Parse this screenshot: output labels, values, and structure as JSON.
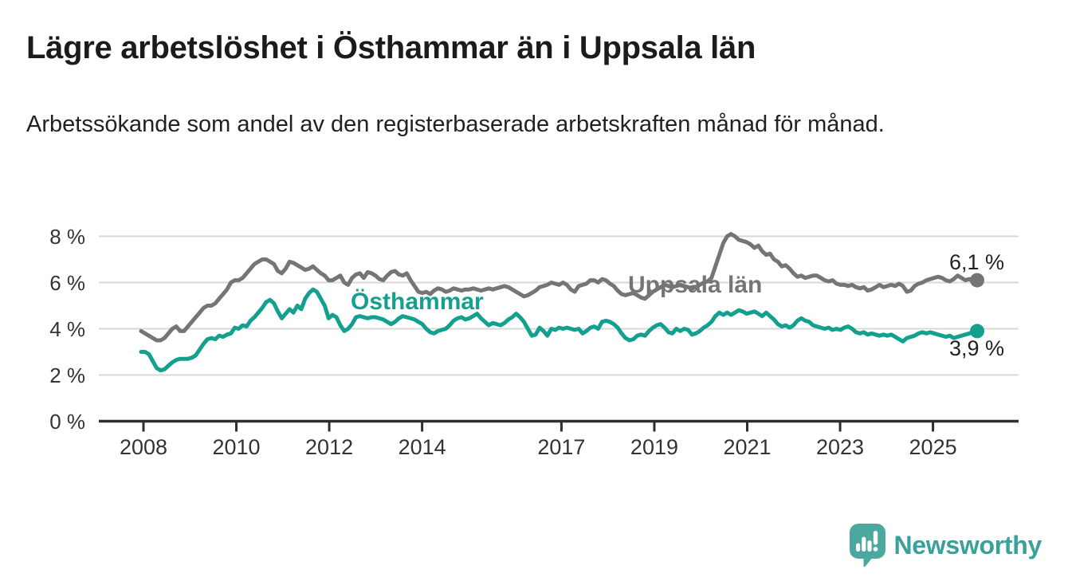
{
  "header": {
    "title": "Lägre arbetslöshet i Östhammar än i Uppsala län",
    "subtitle": "Arbetssökande som andel av den registerbaserade arbetskraften månad för månad."
  },
  "chart_data": {
    "type": "line",
    "title": "Lägre arbetslöshet i Östhammar än i Uppsala län",
    "subtitle": "Arbetssökande som andel av den registerbaserade arbetskraften månad för månad.",
    "unit": "%",
    "x_frequency": "monthly",
    "x_start": "2008-01",
    "x_end": "2025-11",
    "xlabel": "",
    "ylabel": "",
    "ylim": [
      0,
      8.6
    ],
    "grid": true,
    "legend_position": "inline-labels-on-chart",
    "yticks": [
      {
        "label": "8 %",
        "value": 8
      },
      {
        "label": "6 %",
        "value": 6
      },
      {
        "label": "4 %",
        "value": 4
      },
      {
        "label": "2 %",
        "value": 2
      },
      {
        "label": "0 %",
        "value": 0
      }
    ],
    "xticks": [
      {
        "label": "2008",
        "value": 2008
      },
      {
        "label": "2010",
        "value": 2010
      },
      {
        "label": "2012",
        "value": 2012
      },
      {
        "label": "2014",
        "value": 2014
      },
      {
        "label": "2017",
        "value": 2017
      },
      {
        "label": "2019",
        "value": 2019
      },
      {
        "label": "2021",
        "value": 2021
      },
      {
        "label": "2023",
        "value": 2023
      },
      {
        "label": "2025",
        "value": 2025
      }
    ],
    "series": [
      {
        "id": "uppsala-lan",
        "name": "Uppsala län",
        "color": "#757575",
        "end_label": "6,1 %",
        "end_value": 6.1,
        "values": [
          3.9,
          3.8,
          3.7,
          3.6,
          3.5,
          3.5,
          3.6,
          3.8,
          4.0,
          4.1,
          3.9,
          3.9,
          4.1,
          4.3,
          4.5,
          4.7,
          4.9,
          5.0,
          5.0,
          5.1,
          5.3,
          5.5,
          5.7,
          6.0,
          6.1,
          6.1,
          6.2,
          6.4,
          6.6,
          6.8,
          6.9,
          7.0,
          7.0,
          6.9,
          6.8,
          6.5,
          6.4,
          6.6,
          6.9,
          6.85,
          6.75,
          6.65,
          6.55,
          6.6,
          6.7,
          6.55,
          6.4,
          6.3,
          6.1,
          6.1,
          6.2,
          6.3,
          6.0,
          5.9,
          6.2,
          6.35,
          6.4,
          6.2,
          6.45,
          6.4,
          6.3,
          6.15,
          6.1,
          6.3,
          6.45,
          6.5,
          6.35,
          6.3,
          6.4,
          6.1,
          5.85,
          5.6,
          5.55,
          5.6,
          5.5,
          5.65,
          5.75,
          5.7,
          5.6,
          5.65,
          5.75,
          5.7,
          5.65,
          5.7,
          5.7,
          5.75,
          5.7,
          5.65,
          5.7,
          5.75,
          5.7,
          5.75,
          5.8,
          5.85,
          5.8,
          5.7,
          5.6,
          5.5,
          5.4,
          5.45,
          5.55,
          5.65,
          5.8,
          5.85,
          5.9,
          6.0,
          5.95,
          5.9,
          6.0,
          5.9,
          5.7,
          5.6,
          5.85,
          5.9,
          5.95,
          6.1,
          6.1,
          6.0,
          6.15,
          6.1,
          5.95,
          5.85,
          5.65,
          5.5,
          5.45,
          5.5,
          5.55,
          5.45,
          5.35,
          5.3,
          5.45,
          5.6,
          5.7,
          5.8,
          5.9,
          5.85,
          5.8,
          5.85,
          5.9,
          5.85,
          5.8,
          5.75,
          5.8,
          5.9,
          6.0,
          6.05,
          6.2,
          6.7,
          7.2,
          7.7,
          8.0,
          8.1,
          8.0,
          7.85,
          7.8,
          7.75,
          7.65,
          7.5,
          7.6,
          7.35,
          7.2,
          7.25,
          7.0,
          6.9,
          6.7,
          6.75,
          6.6,
          6.4,
          6.25,
          6.3,
          6.2,
          6.25,
          6.3,
          6.3,
          6.2,
          6.1,
          6.05,
          6.1,
          5.95,
          5.9,
          5.9,
          5.85,
          5.9,
          5.8,
          5.75,
          5.8,
          5.65,
          5.7,
          5.8,
          5.9,
          5.8,
          5.85,
          5.9,
          5.85,
          5.95,
          5.85,
          5.6,
          5.65,
          5.85,
          5.95,
          6.0,
          6.1,
          6.15,
          6.2,
          6.25,
          6.2,
          6.1,
          6.05,
          6.15,
          6.3,
          6.2,
          6.1,
          6.15,
          6.05,
          6.1
        ]
      },
      {
        "id": "osthammar",
        "name": "Östhammar",
        "color": "#13a08f",
        "end_label": "3,9 %",
        "end_value": 3.9,
        "values": [
          3.0,
          3.0,
          2.9,
          2.6,
          2.3,
          2.2,
          2.25,
          2.4,
          2.55,
          2.65,
          2.7,
          2.7,
          2.7,
          2.75,
          2.85,
          3.1,
          3.35,
          3.55,
          3.6,
          3.55,
          3.7,
          3.65,
          3.75,
          3.8,
          4.05,
          4.0,
          4.15,
          4.1,
          4.35,
          4.5,
          4.7,
          4.9,
          5.15,
          5.25,
          5.1,
          4.75,
          4.45,
          4.65,
          4.85,
          4.7,
          5.0,
          4.85,
          5.3,
          5.55,
          5.7,
          5.6,
          5.3,
          5.0,
          4.45,
          4.6,
          4.5,
          4.15,
          3.9,
          4.0,
          4.2,
          4.5,
          4.55,
          4.5,
          4.45,
          4.5,
          4.5,
          4.45,
          4.4,
          4.3,
          4.2,
          4.3,
          4.45,
          4.55,
          4.5,
          4.45,
          4.4,
          4.3,
          4.2,
          4.0,
          3.85,
          3.8,
          3.9,
          3.95,
          4.0,
          4.15,
          4.35,
          4.45,
          4.5,
          4.4,
          4.45,
          4.55,
          4.65,
          4.45,
          4.3,
          4.15,
          4.25,
          4.2,
          4.15,
          4.25,
          4.4,
          4.5,
          4.65,
          4.5,
          4.3,
          4.0,
          3.7,
          3.75,
          4.05,
          3.9,
          3.7,
          4.0,
          3.95,
          4.05,
          4.0,
          4.05,
          4.0,
          3.95,
          4.0,
          3.8,
          3.9,
          4.05,
          4.1,
          4.0,
          4.3,
          4.35,
          4.3,
          4.2,
          4.05,
          3.8,
          3.6,
          3.5,
          3.55,
          3.7,
          3.75,
          3.7,
          3.9,
          4.05,
          4.15,
          4.2,
          4.05,
          3.85,
          3.8,
          4.0,
          3.9,
          4.0,
          3.95,
          3.75,
          3.8,
          3.9,
          4.05,
          4.15,
          4.3,
          4.55,
          4.7,
          4.6,
          4.7,
          4.6,
          4.7,
          4.8,
          4.75,
          4.65,
          4.7,
          4.75,
          4.65,
          4.55,
          4.7,
          4.55,
          4.4,
          4.2,
          4.1,
          4.15,
          4.05,
          4.15,
          4.35,
          4.45,
          4.35,
          4.3,
          4.15,
          4.1,
          4.05,
          4.0,
          4.05,
          3.95,
          4.0,
          3.95,
          4.05,
          4.1,
          4.0,
          3.85,
          3.8,
          3.85,
          3.75,
          3.8,
          3.75,
          3.7,
          3.75,
          3.7,
          3.75,
          3.65,
          3.55,
          3.45,
          3.6,
          3.65,
          3.7,
          3.8,
          3.85,
          3.8,
          3.85,
          3.8,
          3.75,
          3.7,
          3.65,
          3.7,
          3.6,
          3.65,
          3.7,
          3.75,
          3.8,
          3.85,
          3.9
        ]
      }
    ]
  },
  "footer": {
    "brand": "Newsworthy",
    "logo_icon": "bar-chart-speech-bubble-icon"
  },
  "colors": {
    "background": "#ffffff",
    "title_text": "#1b1b1b",
    "subtitle_text": "#212121",
    "axis_text": "#333333",
    "axis_line": "#2f2f2f",
    "gridline": "#d8d8d8",
    "uppsala_line": "#757575",
    "osthammar_line": "#13a08f",
    "end_label_text": "#222222",
    "brand_teal_icon": "#4ca79f",
    "brand_teal_text": "#3aa09a"
  }
}
